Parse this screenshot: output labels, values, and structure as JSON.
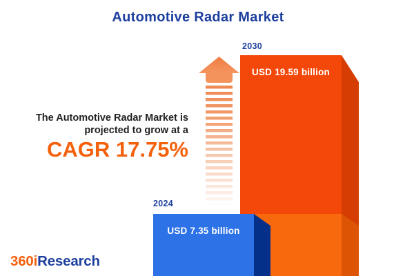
{
  "title": "Automotive Radar Market",
  "growth": {
    "line1": "The Automotive Radar Market is",
    "line2": "projected to grow at a",
    "cagr_label": "CAGR 17.75%"
  },
  "bars": {
    "b2024": {
      "year": "2024",
      "value_label": "USD 7.35 billion"
    },
    "b2030": {
      "year": "2030",
      "value_label": "USD 19.59 billion"
    }
  },
  "logo": {
    "part1": "360i",
    "part2": "Research"
  },
  "colors": {
    "title_blue": "#1D3F9E",
    "cagr_orange": "#F4610D",
    "bar_2024_front": "#2E72E8",
    "bar_2024_side": "#05308A",
    "bar_2030_front": "#F4480A",
    "bar_2030_side": "#D63D03",
    "bar_2030_overlay_front": "#F8690D",
    "bar_2030_overlay_side": "#DD5404",
    "arrow_orange": "#EE8950",
    "text_dark": "#1F1F1F",
    "background": "#FFFFFF"
  },
  "chart_data": {
    "type": "bar",
    "title": "Automotive Radar Market",
    "categories": [
      "2024",
      "2030"
    ],
    "values": [
      7.35,
      19.59
    ],
    "unit": "USD billion",
    "value_labels": [
      "USD 7.35 billion",
      "USD 19.59 billion"
    ],
    "cagr_percent": 17.75,
    "annotation": "The Automotive Radar Market is projected to grow at a CAGR 17.75%",
    "bar_colors": [
      "#2E72E8",
      "#F4480A"
    ],
    "legend": "none",
    "grid": false,
    "style": "3d-infographic-bars"
  }
}
